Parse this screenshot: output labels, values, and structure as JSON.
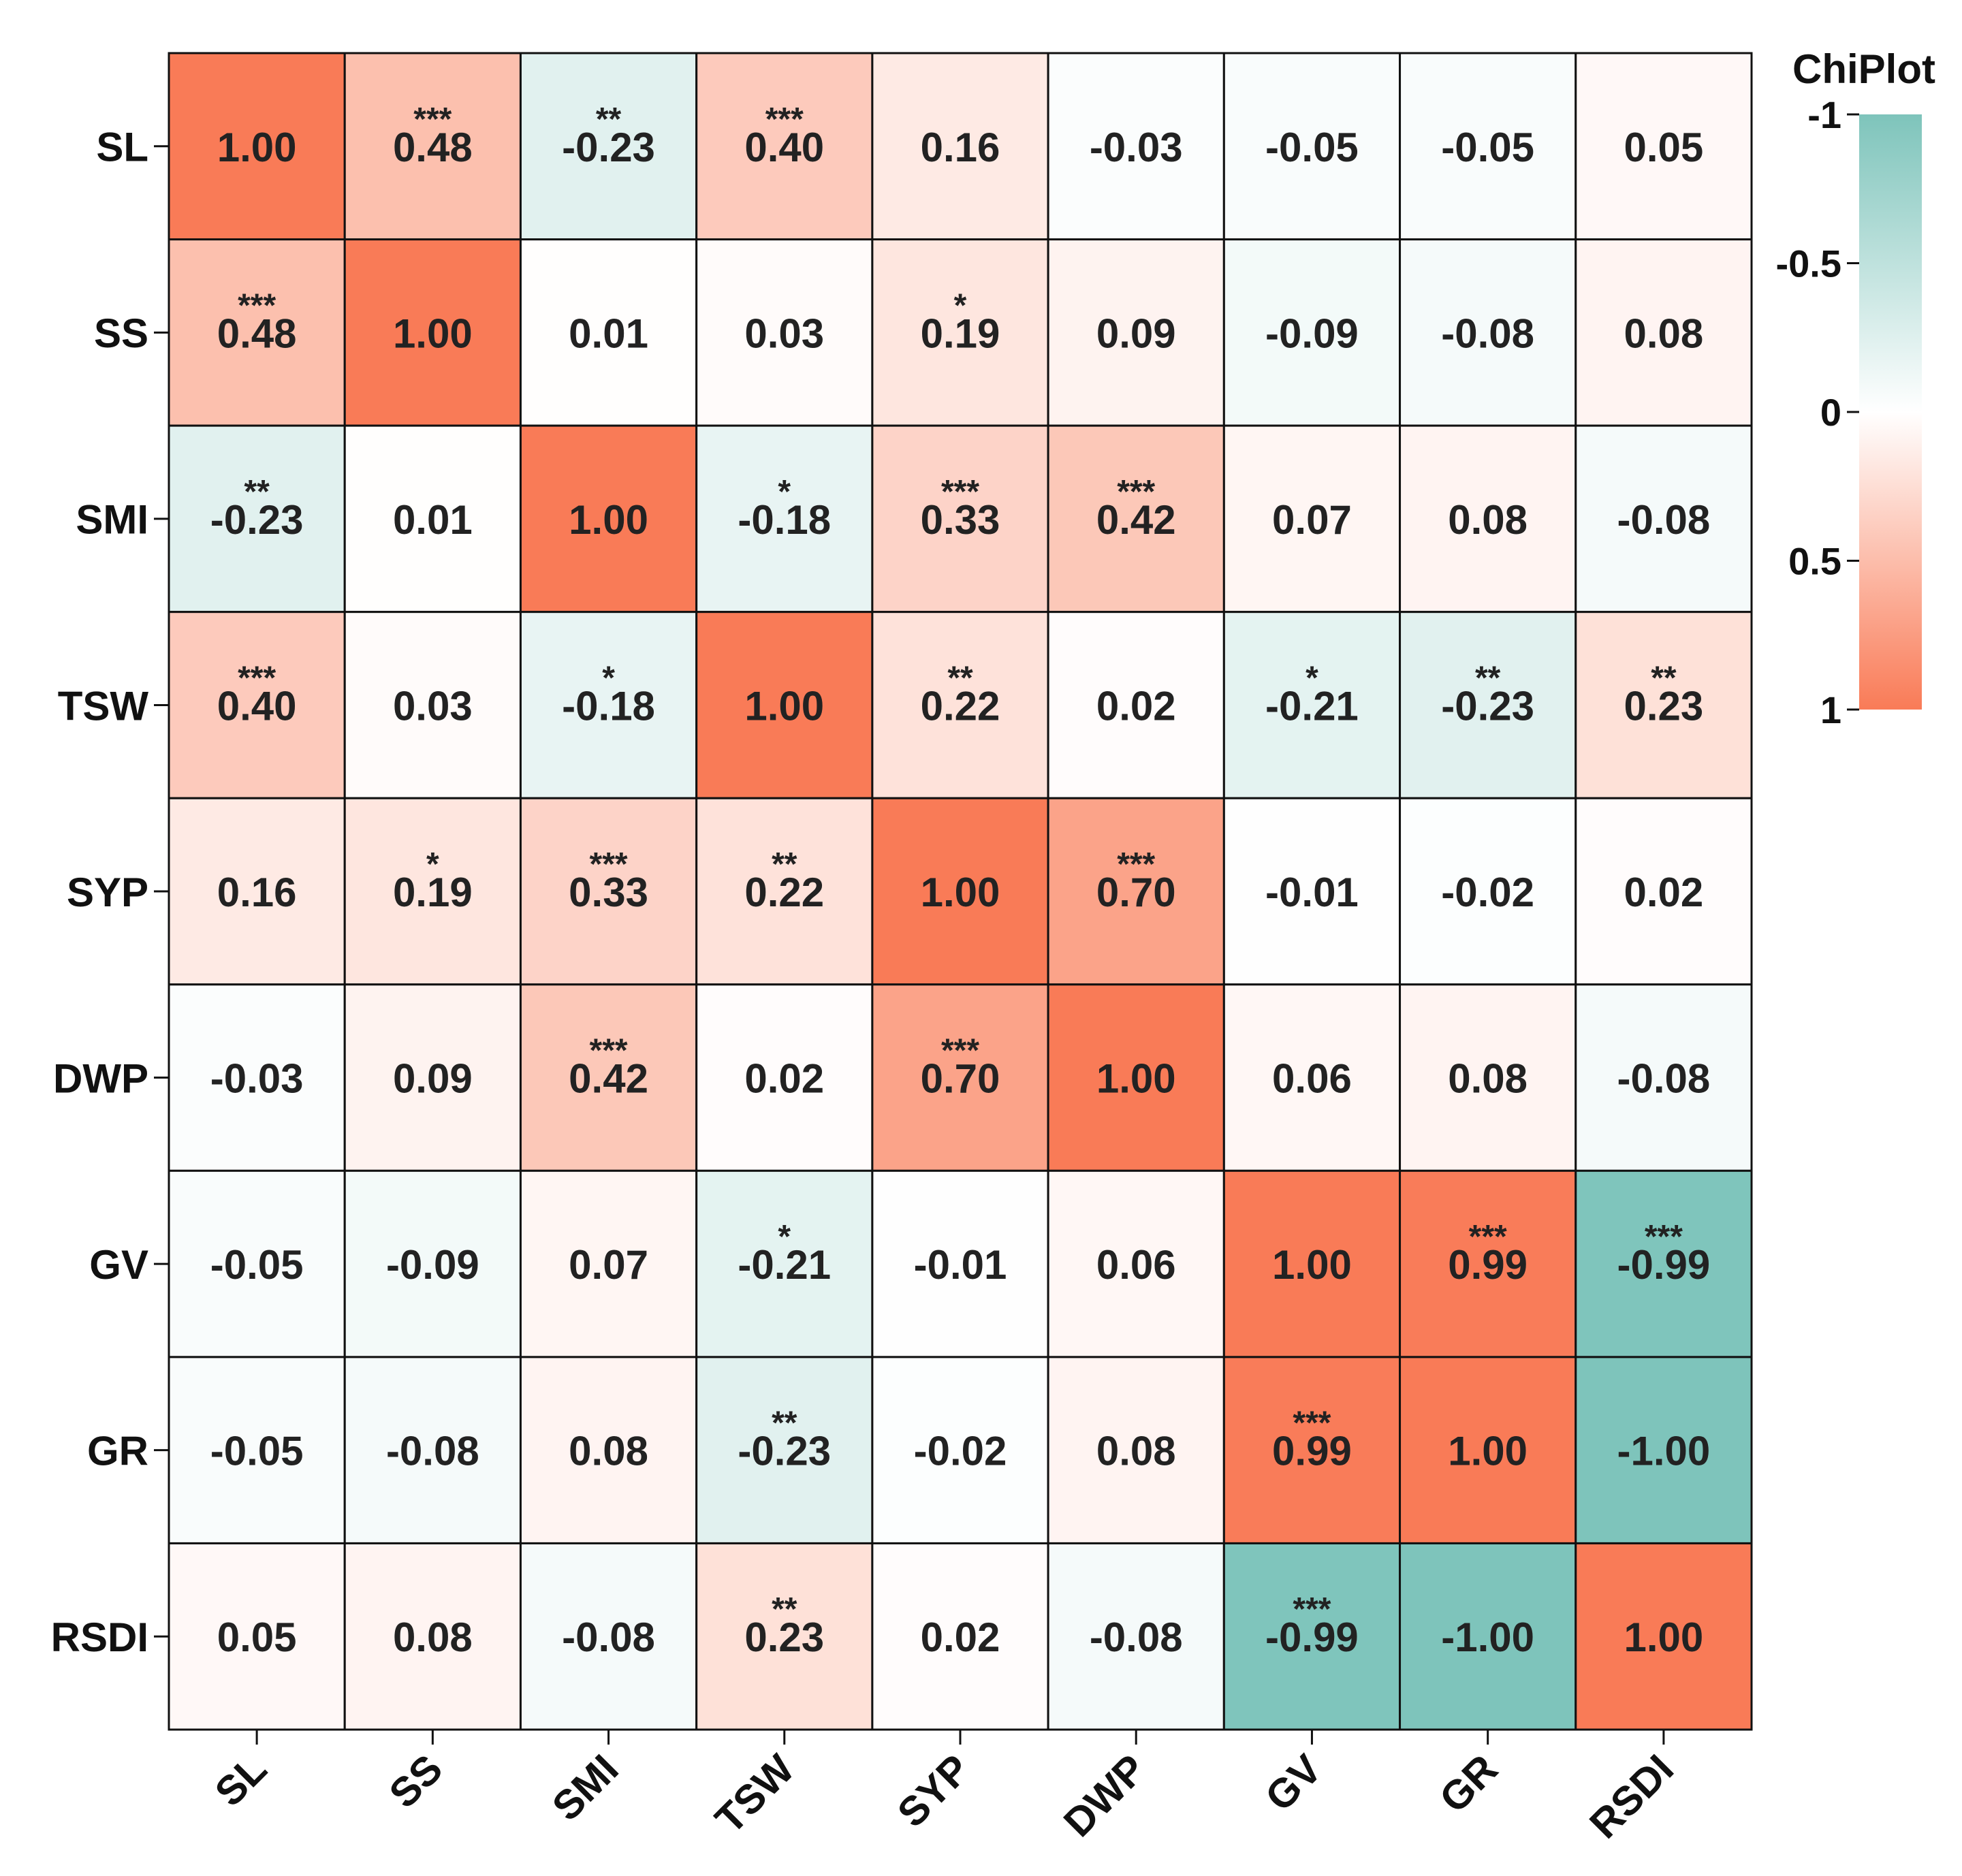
{
  "chart_data": {
    "type": "heatmap",
    "title": "",
    "variables": [
      "SL",
      "SS",
      "SMI",
      "TSW",
      "SYP",
      "DWP",
      "GV",
      "GR",
      "RSDI"
    ],
    "values": [
      [
        1.0,
        0.48,
        -0.23,
        0.4,
        0.16,
        -0.03,
        -0.05,
        -0.05,
        0.05
      ],
      [
        0.48,
        1.0,
        0.01,
        0.03,
        0.19,
        0.09,
        -0.09,
        -0.08,
        0.08
      ],
      [
        -0.23,
        0.01,
        1.0,
        -0.18,
        0.33,
        0.42,
        0.07,
        0.08,
        -0.08
      ],
      [
        0.4,
        0.03,
        -0.18,
        1.0,
        0.22,
        0.02,
        -0.21,
        -0.23,
        0.23
      ],
      [
        0.16,
        0.19,
        0.33,
        0.22,
        1.0,
        0.7,
        -0.01,
        -0.02,
        0.02
      ],
      [
        -0.03,
        0.09,
        0.42,
        0.02,
        0.7,
        1.0,
        0.06,
        0.08,
        -0.08
      ],
      [
        -0.05,
        -0.09,
        0.07,
        -0.21,
        -0.01,
        0.06,
        1.0,
        0.99,
        -0.99
      ],
      [
        -0.05,
        -0.08,
        0.08,
        -0.23,
        -0.02,
        0.08,
        0.99,
        1.0,
        -1.0
      ],
      [
        0.05,
        0.08,
        -0.08,
        0.23,
        0.02,
        -0.08,
        -0.99,
        -1.0,
        1.0
      ]
    ],
    "significance": [
      [
        "",
        "***",
        "**",
        "***",
        "",
        "",
        "",
        "",
        ""
      ],
      [
        "***",
        "",
        "",
        "",
        "*",
        "",
        "",
        "",
        ""
      ],
      [
        "**",
        "",
        "",
        "*",
        "***",
        "***",
        "",
        "",
        ""
      ],
      [
        "***",
        "",
        "*",
        "",
        "**",
        "",
        "*",
        "**",
        "**"
      ],
      [
        "",
        "*",
        "***",
        "**",
        "",
        "***",
        "",
        "",
        ""
      ],
      [
        "",
        "",
        "***",
        "",
        "***",
        "",
        "",
        "",
        ""
      ],
      [
        "",
        "",
        "",
        "*",
        "",
        "",
        "",
        "***",
        "***"
      ],
      [
        "",
        "",
        "",
        "**",
        "",
        "",
        "***",
        "",
        ""
      ],
      [
        "",
        "",
        "",
        "**",
        "",
        "",
        "***",
        "",
        ""
      ]
    ],
    "colorbar": {
      "title": "ChiPlot",
      "range": [
        -1,
        1
      ],
      "ticks": [
        "-1",
        "-0.5",
        "0",
        "0.5",
        "1"
      ],
      "tick_values": [
        -1,
        -0.5,
        0,
        0.5,
        1
      ]
    },
    "colors": {
      "negative": "#7ec4bb",
      "neutral": "#ffffff",
      "positive": "#f97b57"
    }
  }
}
